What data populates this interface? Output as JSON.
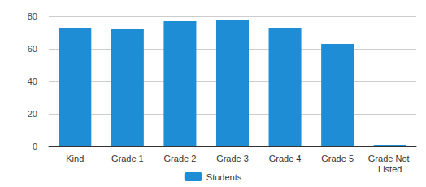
{
  "chart_data": {
    "type": "bar",
    "categories": [
      "Kind",
      "Grade 1",
      "Grade 2",
      "Grade 3",
      "Grade 4",
      "Grade 5",
      "Grade Not Listed"
    ],
    "series": [
      {
        "name": "Students",
        "color": "#1f8dd6",
        "values": [
          73,
          72,
          77,
          78,
          73,
          63,
          1
        ]
      }
    ],
    "ylim": [
      0,
      80
    ],
    "yticks": [
      0,
      20,
      40,
      60,
      80
    ],
    "grid": true,
    "legend": "bottom"
  }
}
